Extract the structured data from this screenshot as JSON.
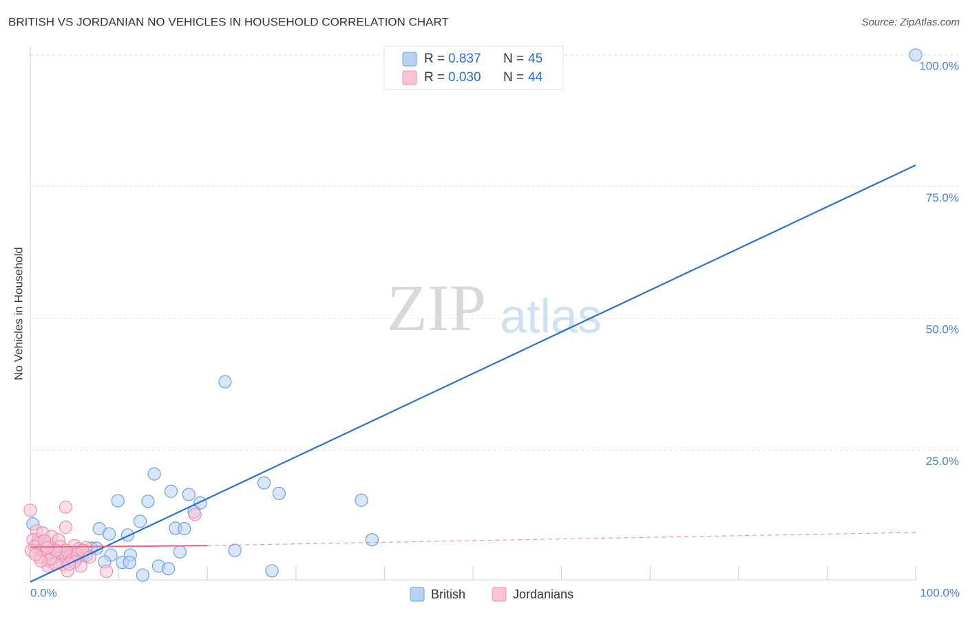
{
  "chart_data": {
    "type": "scatter",
    "title": "BRITISH VS JORDANIAN NO VEHICLES IN HOUSEHOLD CORRELATION CHART",
    "source": "Source: ZipAtlas.com",
    "y_label": "No Vehicles in Household",
    "watermark": [
      "ZIP",
      "atlas"
    ],
    "xlim": [
      0,
      100
    ],
    "ylim": [
      0,
      100
    ],
    "xticks": [
      {
        "value": 0,
        "label": "0.0%"
      },
      {
        "value": 100,
        "label": "100.0%"
      }
    ],
    "xminor_ticks": [
      10,
      20,
      30,
      40,
      50,
      60,
      70,
      80,
      90
    ],
    "yticks": [
      {
        "value": 25,
        "label": "25.0%"
      },
      {
        "value": 50,
        "label": "50.0%"
      },
      {
        "value": 75,
        "label": "75.0%"
      },
      {
        "value": 100,
        "label": "100.0%"
      }
    ],
    "grid": true,
    "legend_labels": {
      "r": "R = ",
      "n": "N = "
    },
    "series": [
      {
        "name": "British",
        "color": "#6aa0e0",
        "fill": "#b8d2f5",
        "line_color": "#2a6fcc",
        "r": "0.837",
        "n": 45,
        "x": [
          100,
          22.0,
          14.0,
          26.4,
          28.1,
          37.4,
          15.9,
          17.9,
          9.9,
          13.3,
          19.2,
          18.5,
          12.4,
          7.8,
          16.4,
          17.4,
          8.9,
          11.0,
          38.6,
          0.3,
          0.9,
          1.7,
          2.8,
          4.0,
          4.9,
          5.9,
          6.9,
          7.5,
          9.1,
          11.3,
          16.9,
          23.1,
          10.4,
          8.4,
          11.2,
          14.5,
          15.6,
          12.7,
          27.3,
          6.3,
          2.2,
          3.4,
          4.5,
          1.2,
          5.4
        ],
        "values": [
          100,
          38.0,
          20.5,
          18.8,
          16.8,
          15.5,
          17.2,
          16.6,
          15.4,
          15.3,
          15.0,
          13.3,
          11.5,
          10.1,
          10.2,
          10.1,
          9.1,
          8.9,
          8.0,
          11.0,
          8.0,
          6.9,
          6.0,
          5.2,
          5.5,
          5.0,
          6.4,
          6.4,
          5.1,
          5.1,
          5.7,
          6.0,
          3.7,
          3.8,
          3.7,
          3.0,
          2.5,
          1.3,
          2.1,
          5.0,
          5.2,
          5.0,
          4.0,
          6.0,
          4.7
        ],
        "trendline": {
          "x": [
            0,
            100
          ],
          "y": [
            0,
            79.1
          ]
        }
      },
      {
        "name": "Jordanians",
        "color": "#ec8fae",
        "fill": "#f8c3d5",
        "line_color": "#e8678f",
        "r": "0.030",
        "n": 44,
        "x": [
          0,
          4.0,
          4.0,
          18.6,
          0.7,
          1.4,
          2.4,
          0.3,
          0.9,
          2.0,
          3.2,
          5.0,
          5.5,
          6.3,
          0.5,
          1.2,
          1.7,
          2.6,
          3.6,
          4.4,
          1.1,
          2.1,
          2.9,
          3.7,
          4.7,
          5.7,
          2.0,
          2.8,
          4.2,
          8.6,
          5.3,
          1.6,
          0.1,
          3.4,
          2.3,
          1.2,
          0.6,
          5.0,
          5.9,
          4.0,
          2.9,
          1.9,
          4.4,
          6.7
        ],
        "values": [
          13.6,
          14.2,
          10.4,
          12.8,
          9.7,
          9.3,
          8.6,
          8.0,
          7.3,
          7.3,
          8.0,
          6.9,
          6.3,
          6.5,
          6.7,
          6.0,
          5.5,
          5.1,
          5.2,
          4.7,
          4.7,
          4.0,
          3.7,
          3.3,
          4.4,
          3.0,
          3.0,
          3.4,
          2.1,
          2.0,
          5.2,
          7.8,
          6.0,
          6.7,
          4.4,
          4.0,
          5.2,
          3.8,
          6.0,
          6.0,
          6.0,
          6.5,
          3.4,
          4.7
        ],
        "trendline": {
          "x": [
            0,
            20,
            100
          ],
          "y": [
            6.6,
            6.9,
            9.4
          ]
        }
      }
    ]
  }
}
